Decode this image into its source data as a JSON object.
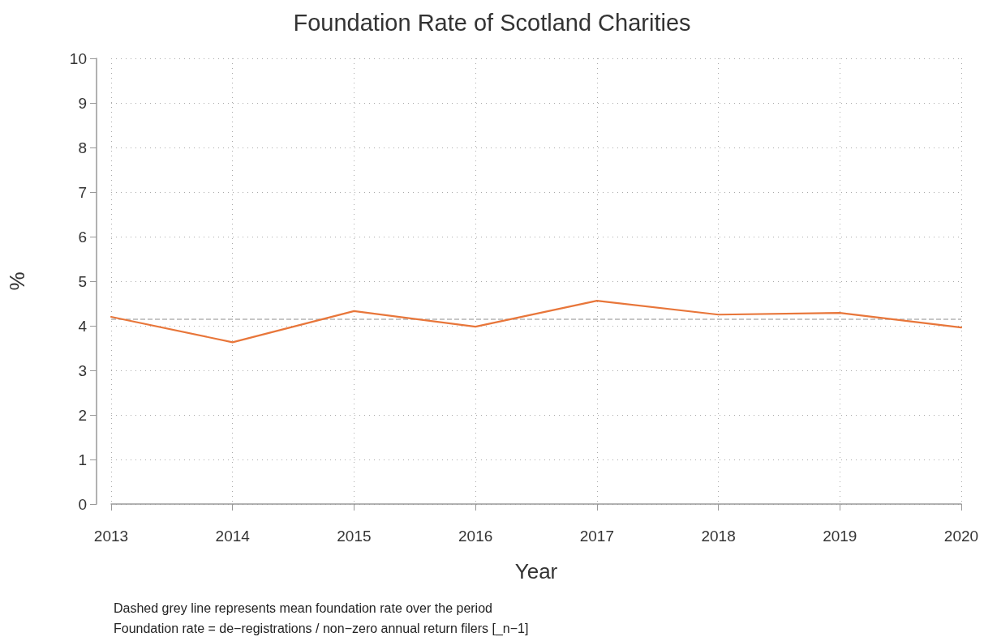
{
  "chart_data": {
    "type": "line",
    "title": "Foundation Rate of Scotland Charities",
    "xlabel": "Year",
    "ylabel": "%",
    "x": [
      2013,
      2014,
      2015,
      2016,
      2017,
      2018,
      2019,
      2020
    ],
    "series": [
      {
        "color": "#e8763a",
        "values": [
          4.2,
          3.63,
          4.33,
          3.98,
          4.56,
          4.25,
          4.29,
          3.96
        ]
      }
    ],
    "xlim": [
      2013,
      2020
    ],
    "xticks": [
      2013,
      2014,
      2015,
      2016,
      2017,
      2018,
      2019,
      2020
    ],
    "ylim": [
      0,
      10
    ],
    "yticks": [
      0,
      1,
      2,
      3,
      4,
      5,
      6,
      7,
      8,
      9,
      10
    ],
    "grid": true,
    "marker": "none",
    "line_style": "solid",
    "ref_lines": [
      {
        "axis": "y",
        "value": 4.15,
        "color": "#b4b4b4",
        "line_style": "dashed"
      }
    ],
    "annotations": [
      "Dashed grey line represents mean foundation rate over the period",
      "Foundation rate = de−registrations / non−zero annual return filers [_n−1]"
    ]
  }
}
